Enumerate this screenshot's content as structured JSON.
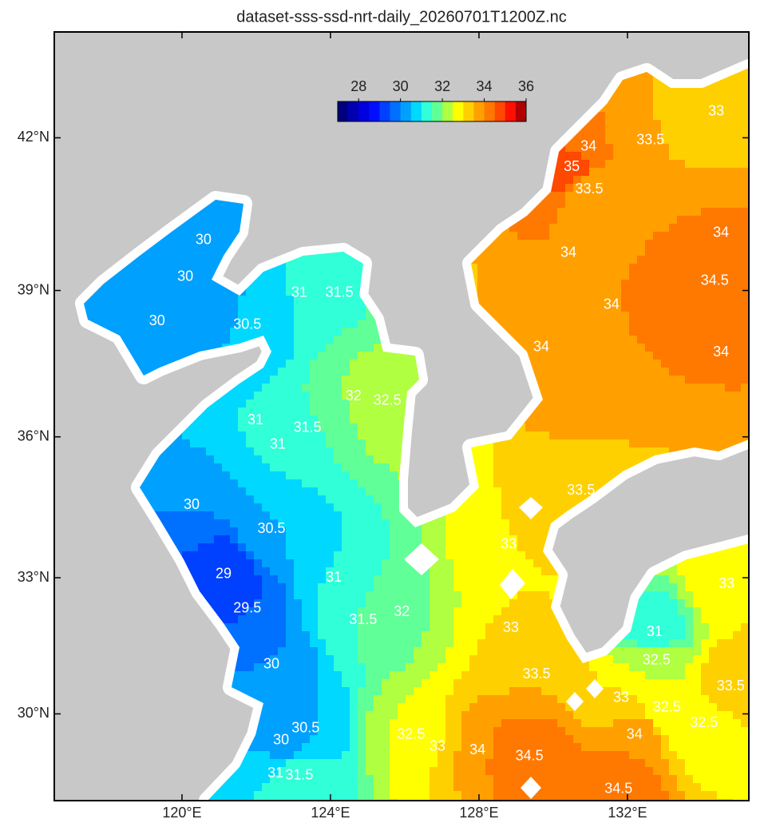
{
  "chart_data": {
    "type": "filled-contour-map",
    "title": "dataset-sss-ssd-nrt-daily_20260701T1200Z.nc",
    "projection": "mercator",
    "xlim": [
      116.56,
      135.27
    ],
    "ylim": [
      28.04,
      44.0
    ],
    "xticks": [
      {
        "value": 120,
        "label": "120°E"
      },
      {
        "value": 124,
        "label": "124°E"
      },
      {
        "value": 128,
        "label": "128°E"
      },
      {
        "value": 132,
        "label": "132°E"
      }
    ],
    "yticks": [
      {
        "value": 30,
        "label": "30°N"
      },
      {
        "value": 33,
        "label": "33°N"
      },
      {
        "value": 36,
        "label": "36°N"
      },
      {
        "value": 39,
        "label": "39°N"
      },
      {
        "value": 42,
        "label": "42°N"
      }
    ],
    "colorbar": {
      "lim": [
        27,
        36
      ],
      "ticks": [
        28,
        30,
        32,
        34,
        36
      ],
      "levels": [
        27,
        27.5,
        28,
        28.5,
        29,
        29.5,
        30,
        30.5,
        31,
        31.5,
        32,
        32.5,
        33,
        33.5,
        34,
        34.5,
        35,
        35.5,
        36
      ],
      "colors": [
        "#000080",
        "#0000b0",
        "#0000e0",
        "#0010ff",
        "#0040ff",
        "#0070ff",
        "#00a0ff",
        "#00d8ff",
        "#30ffd8",
        "#60ff98",
        "#b0ff40",
        "#ffff00",
        "#ffd000",
        "#ffa000",
        "#ff7800",
        "#ff4800",
        "#ff1000",
        "#b00000"
      ]
    },
    "contour_labels": [
      {
        "value": 30,
        "lon": 120.58,
        "lat": 40.0
      },
      {
        "value": 30,
        "lon": 120.09,
        "lat": 39.27
      },
      {
        "value": 30,
        "lon": 119.33,
        "lat": 38.38
      },
      {
        "value": 30.5,
        "lon": 121.76,
        "lat": 38.3
      },
      {
        "value": 31,
        "lon": 123.16,
        "lat": 38.95
      },
      {
        "value": 31.5,
        "lon": 124.24,
        "lat": 38.95
      },
      {
        "value": 32,
        "lon": 124.62,
        "lat": 36.84
      },
      {
        "value": 32.5,
        "lon": 125.53,
        "lat": 36.75
      },
      {
        "value": 31,
        "lon": 121.98,
        "lat": 36.34
      },
      {
        "value": 31.5,
        "lon": 123.38,
        "lat": 36.18
      },
      {
        "value": 31,
        "lon": 122.58,
        "lat": 35.83
      },
      {
        "value": 30,
        "lon": 120.26,
        "lat": 34.56
      },
      {
        "value": 30.5,
        "lon": 122.41,
        "lat": 34.05
      },
      {
        "value": 29,
        "lon": 121.12,
        "lat": 33.07
      },
      {
        "value": 29.5,
        "lon": 121.76,
        "lat": 32.33
      },
      {
        "value": 31,
        "lon": 124.09,
        "lat": 33.0
      },
      {
        "value": 31.5,
        "lon": 124.88,
        "lat": 32.07
      },
      {
        "value": 32,
        "lon": 125.92,
        "lat": 32.25
      },
      {
        "value": 30,
        "lon": 122.41,
        "lat": 31.1
      },
      {
        "value": 30,
        "lon": 122.67,
        "lat": 29.4
      },
      {
        "value": 30.5,
        "lon": 123.33,
        "lat": 29.67
      },
      {
        "value": 31,
        "lon": 122.52,
        "lat": 28.65
      },
      {
        "value": 31.5,
        "lon": 123.16,
        "lat": 28.61
      },
      {
        "value": 32.5,
        "lon": 126.17,
        "lat": 29.53
      },
      {
        "value": 33,
        "lon": 126.88,
        "lat": 29.26
      },
      {
        "value": 34,
        "lon": 127.96,
        "lat": 29.18
      },
      {
        "value": 34.5,
        "lon": 129.36,
        "lat": 29.04
      },
      {
        "value": 34.5,
        "lon": 131.76,
        "lat": 28.3
      },
      {
        "value": 34,
        "lon": 132.19,
        "lat": 29.53
      },
      {
        "value": 33,
        "lon": 131.83,
        "lat": 30.35
      },
      {
        "value": 33.5,
        "lon": 129.55,
        "lat": 30.88
      },
      {
        "value": 33,
        "lon": 128.86,
        "lat": 31.9
      },
      {
        "value": 33,
        "lon": 128.8,
        "lat": 33.71
      },
      {
        "value": 33.5,
        "lon": 130.75,
        "lat": 34.86
      },
      {
        "value": 34,
        "lon": 129.68,
        "lat": 37.85
      },
      {
        "value": 34,
        "lon": 131.57,
        "lat": 38.71
      },
      {
        "value": 34,
        "lon": 130.41,
        "lat": 39.75
      },
      {
        "value": 34.5,
        "lon": 134.35,
        "lat": 39.19
      },
      {
        "value": 34,
        "lon": 134.52,
        "lat": 40.14
      },
      {
        "value": 34,
        "lon": 134.52,
        "lat": 37.74
      },
      {
        "value": 33.5,
        "lon": 132.62,
        "lat": 41.95
      },
      {
        "value": 33,
        "lon": 134.39,
        "lat": 42.5
      },
      {
        "value": 35,
        "lon": 130.5,
        "lat": 41.43
      },
      {
        "value": 34,
        "lon": 130.95,
        "lat": 41.83
      },
      {
        "value": 33.5,
        "lon": 130.97,
        "lat": 41.0
      },
      {
        "value": 32.5,
        "lon": 133.06,
        "lat": 30.14
      },
      {
        "value": 32.5,
        "lon": 134.06,
        "lat": 29.79
      },
      {
        "value": 33.5,
        "lon": 134.78,
        "lat": 30.61
      },
      {
        "value": 31,
        "lon": 132.73,
        "lat": 31.81
      },
      {
        "value": 32.5,
        "lon": 132.78,
        "lat": 31.19
      },
      {
        "value": 33,
        "lon": 134.67,
        "lat": 32.86
      }
    ]
  }
}
